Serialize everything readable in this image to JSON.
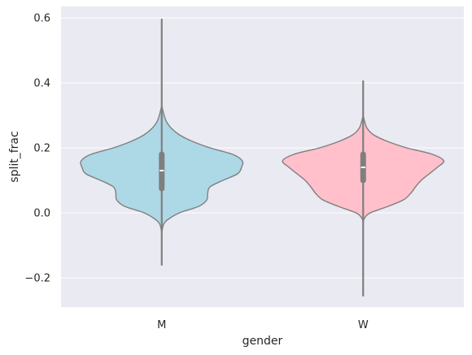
{
  "chart_data": {
    "type": "violin",
    "title": "",
    "xlabel": "gender",
    "ylabel": "split_frac",
    "ylim": [
      -0.29,
      0.635
    ],
    "yticks": [
      -0.2,
      0.0,
      0.2,
      0.4,
      0.6
    ],
    "ytick_labels": [
      "−0.2",
      "0.0",
      "0.2",
      "0.4",
      "0.6"
    ],
    "grid": true,
    "categories": [
      "M",
      "W"
    ],
    "colors": {
      "background": "#EAEAF2",
      "grid": "#FFFFFF",
      "outline": "#7F7F7F",
      "M": "#ADD8E6",
      "W": "#FFC0CB",
      "median": "#FFFFFF"
    },
    "violins": [
      {
        "category": "M",
        "min": -0.16,
        "max": 0.595,
        "q1": 0.075,
        "median": 0.13,
        "q3": 0.18,
        "density": [
          [
            -0.06,
            0.0
          ],
          [
            -0.035,
            0.025
          ],
          [
            -0.02,
            0.08
          ],
          [
            0.0,
            0.22
          ],
          [
            0.02,
            0.46
          ],
          [
            0.04,
            0.56
          ],
          [
            0.06,
            0.57
          ],
          [
            0.08,
            0.6
          ],
          [
            0.1,
            0.76
          ],
          [
            0.12,
            0.94
          ],
          [
            0.14,
            0.99
          ],
          [
            0.16,
            1.0
          ],
          [
            0.18,
            0.88
          ],
          [
            0.2,
            0.6
          ],
          [
            0.22,
            0.38
          ],
          [
            0.24,
            0.22
          ],
          [
            0.26,
            0.12
          ],
          [
            0.28,
            0.06
          ],
          [
            0.3,
            0.03
          ],
          [
            0.33,
            0.0
          ]
        ]
      },
      {
        "category": "W",
        "min": -0.255,
        "max": 0.405,
        "q1": 0.1,
        "median": 0.14,
        "q3": 0.18,
        "density": [
          [
            -0.03,
            0.0
          ],
          [
            -0.015,
            0.02
          ],
          [
            0.0,
            0.09
          ],
          [
            0.02,
            0.31
          ],
          [
            0.04,
            0.5
          ],
          [
            0.06,
            0.59
          ],
          [
            0.08,
            0.65
          ],
          [
            0.1,
            0.72
          ],
          [
            0.12,
            0.82
          ],
          [
            0.14,
            0.92
          ],
          [
            0.16,
            1.0
          ],
          [
            0.18,
            0.86
          ],
          [
            0.2,
            0.54
          ],
          [
            0.22,
            0.3
          ],
          [
            0.24,
            0.13
          ],
          [
            0.26,
            0.05
          ],
          [
            0.28,
            0.02
          ],
          [
            0.3,
            0.0
          ]
        ]
      }
    ]
  }
}
